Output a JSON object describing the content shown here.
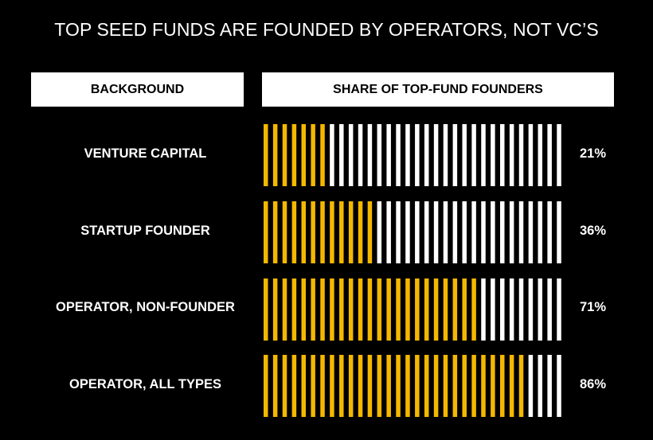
{
  "header": {
    "title": "TOP SEED FUNDS ARE FOUNDED BY OPERATORS, NOT VC’S",
    "col_background": "BACKGROUND",
    "col_share": "SHARE OF TOP-FUND FOUNDERS"
  },
  "colors": {
    "background": "#000000",
    "filled": "#F5B800",
    "empty": "#FFFFFF"
  },
  "chart_data": {
    "type": "bar",
    "categories": [
      "VENTURE CAPITAL",
      "STARTUP FOUNDER",
      "OPERATOR, NON-FOUNDER",
      "OPERATOR, ALL TYPES"
    ],
    "values": [
      21,
      36,
      71,
      86
    ],
    "value_labels": [
      "21%",
      "36%",
      "71%",
      "86%"
    ],
    "unit": "%",
    "xlim": [
      0,
      100
    ],
    "total_ticks": 32,
    "grid": false
  }
}
